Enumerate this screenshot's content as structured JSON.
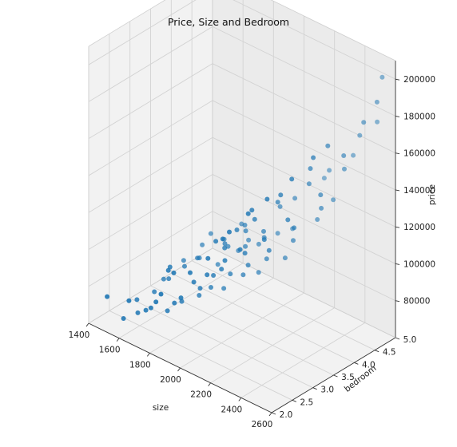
{
  "chart_data": {
    "type": "scatter3d",
    "title": "Price, Size and Bedroom",
    "xlabel": "size",
    "ylabel": "bedroom",
    "zlabel": "price",
    "xlim": [
      1400,
      2600
    ],
    "ylim": [
      2.0,
      5.0
    ],
    "zlim": [
      60000,
      210000
    ],
    "x_ticks": [
      "1400",
      "1600",
      "1800",
      "2000",
      "2200",
      "2400",
      "2600"
    ],
    "y_ticks": [
      "2.0",
      "2.5",
      "3.0",
      "3.5",
      "4.0",
      "4.5",
      "5.0"
    ],
    "z_ticks": [
      "80000",
      "100000",
      "120000",
      "140000",
      "160000",
      "180000",
      "200000"
    ],
    "grid": true,
    "marker_color": "#1f77b4",
    "points": [
      [
        1440,
        2.3,
        72000
      ],
      [
        1520,
        2.4,
        62000
      ],
      [
        1610,
        2.2,
        78000
      ],
      [
        1560,
        2.6,
        64000
      ],
      [
        1640,
        2.5,
        70000
      ],
      [
        1700,
        2.4,
        75000
      ],
      [
        1760,
        2.3,
        82000
      ],
      [
        1700,
        2.8,
        68000
      ],
      [
        1800,
        2.6,
        79000
      ],
      [
        1820,
        2.2,
        90000
      ],
      [
        1870,
        2.5,
        86000
      ],
      [
        1740,
        3.0,
        72000
      ],
      [
        1800,
        3.2,
        75000
      ],
      [
        1860,
        3.0,
        84000
      ],
      [
        1900,
        2.7,
        93000
      ],
      [
        1850,
        3.3,
        80000
      ],
      [
        1920,
        3.1,
        92000
      ],
      [
        1960,
        2.8,
        98000
      ],
      [
        1880,
        3.5,
        78000
      ],
      [
        1950,
        3.4,
        90000
      ],
      [
        2000,
        3.0,
        100000
      ],
      [
        2050,
        2.9,
        108000
      ],
      [
        1980,
        3.6,
        88000
      ],
      [
        2040,
        3.5,
        97000
      ],
      [
        2100,
        3.2,
        110000
      ],
      [
        2150,
        2.9,
        118000
      ],
      [
        2000,
        3.9,
        86000
      ],
      [
        2080,
        3.8,
        98000
      ],
      [
        2150,
        3.6,
        108000
      ],
      [
        2200,
        3.3,
        120000
      ],
      [
        2120,
        4.1,
        96000
      ],
      [
        2200,
        4.0,
        110000
      ],
      [
        2260,
        3.8,
        122000
      ],
      [
        2300,
        3.5,
        132000
      ],
      [
        1680,
        3.6,
        85000
      ],
      [
        1760,
        3.8,
        82000
      ],
      [
        1840,
        4.0,
        90000
      ],
      [
        1920,
        4.2,
        94000
      ],
      [
        1780,
        4.3,
        98000
      ],
      [
        1660,
        4.0,
        92000
      ],
      [
        1990,
        4.4,
        100000
      ],
      [
        2060,
        4.5,
        104000
      ],
      [
        2250,
        4.4,
        118000
      ],
      [
        2330,
        4.2,
        130000
      ],
      [
        2380,
        4.0,
        142000
      ],
      [
        2300,
        4.6,
        128000
      ],
      [
        2400,
        4.5,
        150000
      ],
      [
        2450,
        4.3,
        162000
      ],
      [
        2500,
        4.6,
        178000
      ],
      [
        2420,
        4.8,
        165000
      ],
      [
        2540,
        4.9,
        200000
      ],
      [
        2560,
        4.7,
        190000
      ],
      [
        2480,
        5.0,
        172000
      ],
      [
        2350,
        4.9,
        150000
      ],
      [
        2220,
        4.8,
        138000
      ],
      [
        2160,
        4.9,
        130000
      ],
      [
        2300,
        3.0,
        150000
      ],
      [
        2380,
        3.3,
        160000
      ],
      [
        2440,
        3.6,
        170000
      ],
      [
        2200,
        3.0,
        140000
      ],
      [
        1600,
        3.2,
        76000
      ],
      [
        1560,
        3.0,
        70000
      ],
      [
        1650,
        3.4,
        82000
      ],
      [
        1720,
        3.5,
        88000
      ],
      [
        1800,
        3.9,
        92000
      ],
      [
        1880,
        4.1,
        96000
      ],
      [
        1940,
        3.8,
        99000
      ],
      [
        2010,
        4.0,
        104000
      ],
      [
        1930,
        2.5,
        102000
      ],
      [
        2020,
        2.6,
        112000
      ],
      [
        2090,
        2.7,
        124000
      ],
      [
        2160,
        2.6,
        132000
      ],
      [
        2230,
        2.8,
        142000
      ],
      [
        1850,
        2.4,
        100000
      ],
      [
        1760,
        2.6,
        95000
      ],
      [
        1690,
        2.9,
        90000
      ],
      [
        2110,
        3.4,
        126000
      ],
      [
        2180,
        3.7,
        134000
      ],
      [
        2250,
        4.2,
        140000
      ],
      [
        2020,
        3.3,
        118000
      ],
      [
        1970,
        3.7,
        110000
      ],
      [
        1910,
        3.9,
        108000
      ],
      [
        2060,
        4.2,
        120000
      ],
      [
        2130,
        4.3,
        126000
      ],
      [
        1590,
        3.6,
        80000
      ],
      [
        1630,
        3.9,
        86000
      ],
      [
        1720,
        4.1,
        90000
      ],
      [
        1500,
        2.8,
        66000
      ],
      [
        1540,
        3.3,
        72000
      ],
      [
        2340,
        3.9,
        156000
      ],
      [
        2400,
        4.1,
        168000
      ],
      [
        2280,
        3.4,
        146000
      ],
      [
        2060,
        3.8,
        112000
      ],
      [
        1860,
        3.6,
        100000
      ],
      [
        1940,
        3.3,
        105000
      ],
      [
        1990,
        2.9,
        116000
      ]
    ]
  }
}
